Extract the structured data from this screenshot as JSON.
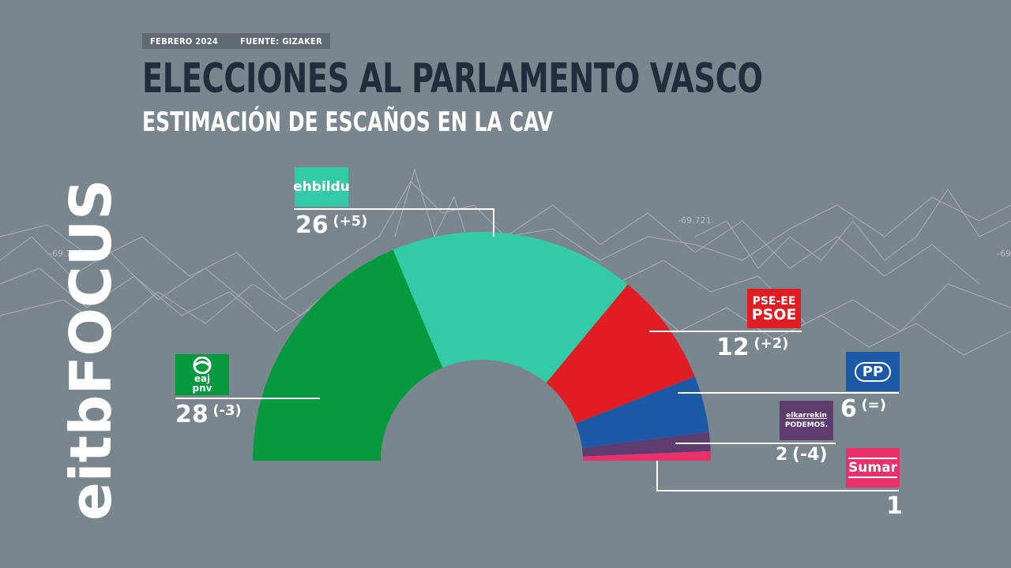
{
  "header": {
    "date": "FEBRERO 2024",
    "source": "FUENTE: GIZAKER",
    "title": "ELECCIONES AL PARLAMENTO VASCO",
    "subtitle": "ESTIMACIÓN DE ESCAÑOS EN LA CAV"
  },
  "brand": {
    "name": "eitbFOCUS"
  },
  "background_labels": [
    "-69.721",
    "-69.721",
    "-69"
  ],
  "chart_data": {
    "type": "pie",
    "variant": "semicircle-parliament",
    "title": "ESTIMACIÓN DE ESCAÑOS EN LA CAV",
    "total_seats": 75,
    "parties": [
      {
        "logo": "eaj pnv",
        "seats": 28,
        "change": "(-3)",
        "color": "#07993e"
      },
      {
        "logo": "ehbildu",
        "seats": 26,
        "change": "(+5)",
        "color": "#33cba7"
      },
      {
        "logo": "PSE-EE PSOE",
        "seats": 12,
        "change": "(+2)",
        "color": "#e01d22"
      },
      {
        "logo": "PP",
        "seats": 6,
        "change": "(=)",
        "color": "#1c5aa8"
      },
      {
        "logo": "elkarrekin PODEMOS.",
        "seats": 2,
        "change": "(-4)",
        "color": "#5e3c70"
      },
      {
        "logo": "Sumar",
        "seats": 1,
        "change": "",
        "color": "#e8306b"
      }
    ]
  },
  "logos": {
    "pnv_top": "eaj",
    "pnv_bottom": "pnv",
    "bildu": "ehbildu",
    "psoe_top": "PSE-EE",
    "psoe_bottom": "PSOE",
    "pp": "PP",
    "podemos_top": "elkarrekin",
    "podemos_bottom": "PODEMOS.",
    "sumar": "Sumar"
  },
  "labels": {
    "pnv": {
      "seats": "28",
      "change": "(-3)"
    },
    "bildu": {
      "seats": "26",
      "change": "(+5)"
    },
    "psoe": {
      "seats": "12",
      "change": "(+2)"
    },
    "pp": {
      "seats": "6",
      "change": "(=)"
    },
    "podemos": {
      "seats": "2",
      "change": "(-4)"
    },
    "sumar": {
      "seats": "1"
    }
  }
}
